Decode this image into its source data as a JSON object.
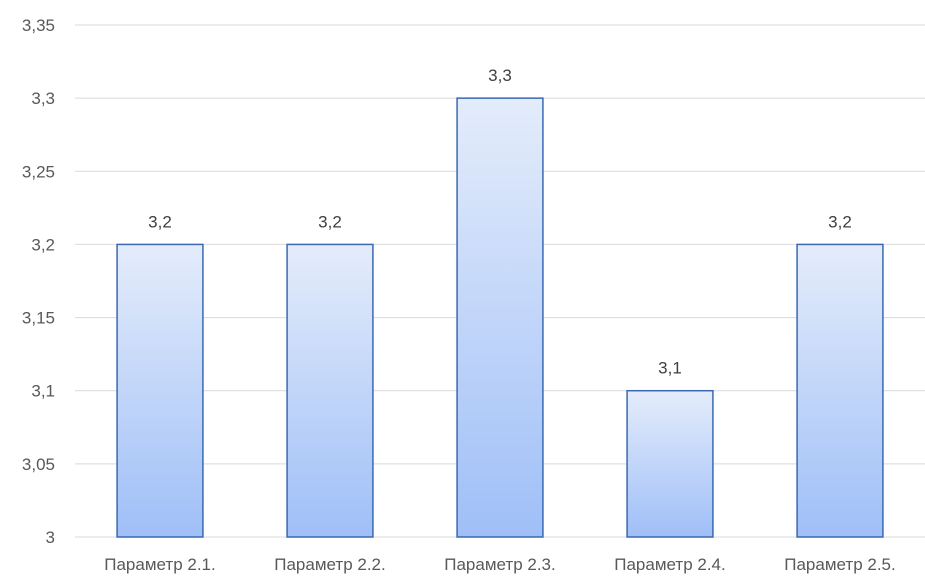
{
  "chart_data": {
    "type": "bar",
    "categories": [
      "Параметр 2.1.",
      "Параметр 2.2.",
      "Параметр 2.3.",
      "Параметр 2.4.",
      "Параметр 2.5."
    ],
    "values": [
      3.2,
      3.2,
      3.3,
      3.1,
      3.2
    ],
    "data_labels": [
      "3,2",
      "3,2",
      "3,3",
      "3,1",
      "3,2"
    ],
    "ylim": [
      3,
      3.35
    ],
    "yticks": [
      3,
      3.05,
      3.1,
      3.15,
      3.2,
      3.25,
      3.3,
      3.35
    ],
    "ytick_labels": [
      "3",
      "3,05",
      "3,1",
      "3,15",
      "3,2",
      "3,25",
      "3,3",
      "3,35"
    ],
    "title": "",
    "xlabel": "",
    "ylabel": "",
    "grid": true,
    "legend": "none",
    "colors": {
      "bar_top": "#e4ecfb",
      "bar_bottom": "#9fbff7",
      "bar_stroke": "#3a69b1",
      "grid": "#d9d9d9"
    }
  }
}
